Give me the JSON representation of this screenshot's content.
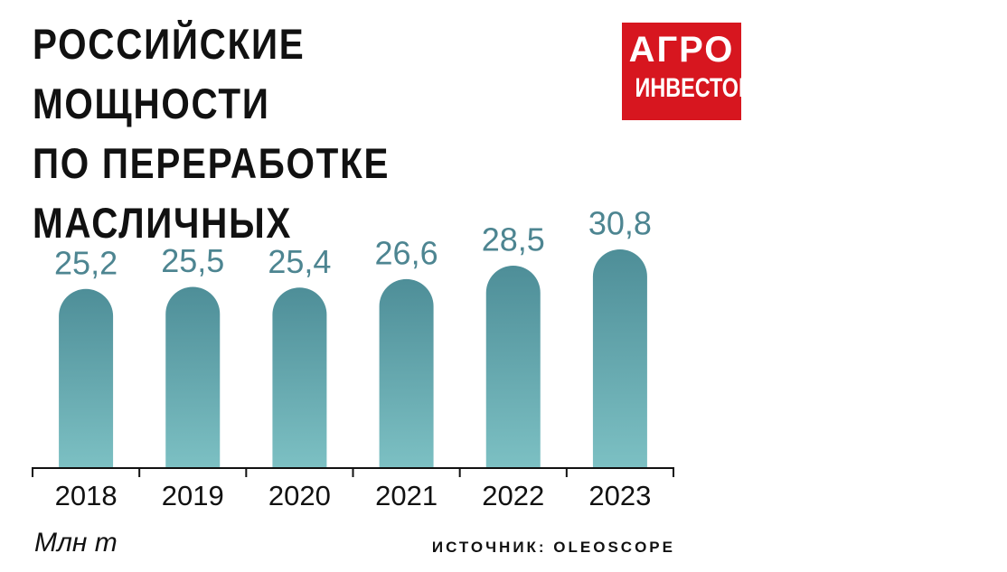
{
  "chart_data": {
    "type": "bar",
    "title": "РОССИЙСКИЕ МОЩНОСТИ\nПО ПЕРЕРАБОТКЕ\nМАСЛИЧНЫХ",
    "brand": [
      "АГРО",
      "ИНВЕСТОР"
    ],
    "categories": [
      "2018",
      "2019",
      "2020",
      "2021",
      "2022",
      "2023"
    ],
    "values": [
      25.2,
      25.5,
      25.4,
      26.6,
      28.5,
      30.8
    ],
    "value_labels": [
      "25,2",
      "25,5",
      "25,4",
      "26,6",
      "28,5",
      "30,8"
    ],
    "colors": [
      "#4e8e98",
      "#7cc0c3"
    ],
    "label_color": "#4d8591",
    "ylim": [
      0,
      40
    ],
    "unit": "Млн т",
    "source": "ИСТОЧНИК: OLEOSCOPE"
  }
}
